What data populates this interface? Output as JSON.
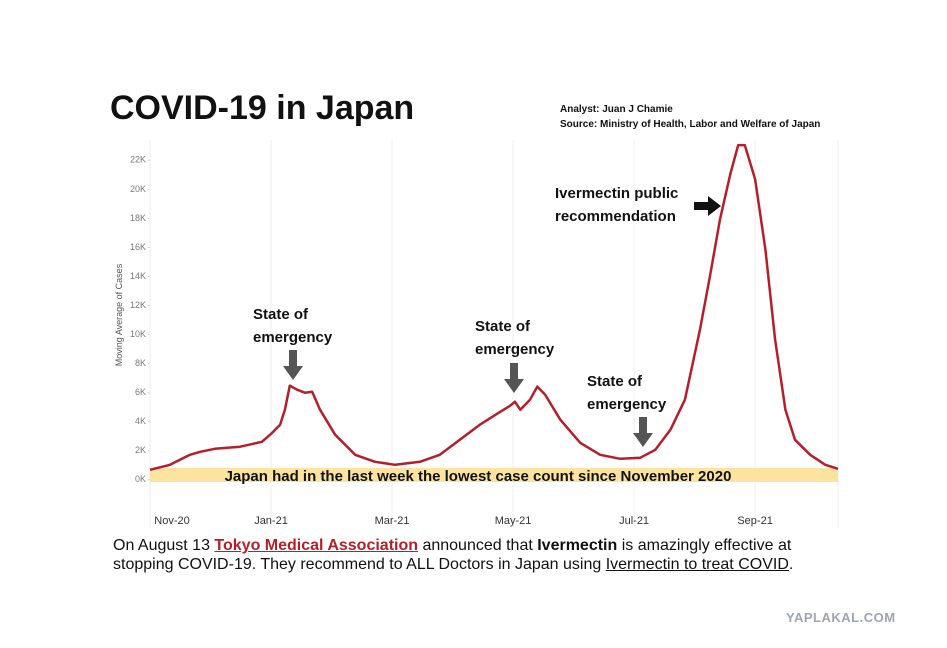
{
  "header": {
    "title": "COVID-19 in Japan",
    "analyst": "Analyst: Juan J Chamie",
    "source": "Source: Ministry of Health, Labor and Welfare of Japan"
  },
  "chart_data": {
    "type": "line",
    "y_label": "Moving Average of Cases",
    "x": [
      0,
      0.33,
      0.66,
      0.83,
      1.07,
      1.49,
      1.85,
      2.02,
      2.15,
      2.23,
      2.31,
      2.43,
      2.56,
      2.68,
      2.81,
      3.06,
      3.39,
      3.72,
      4.05,
      4.46,
      4.79,
      5.12,
      5.45,
      5.79,
      5.95,
      6.03,
      6.12,
      6.28,
      6.4,
      6.53,
      6.78,
      7.11,
      7.44,
      7.77,
      8.1,
      8.35,
      8.6,
      8.84,
      9.09,
      9.26,
      9.42,
      9.59,
      9.72,
      9.83,
      10,
      10.17,
      10.33,
      10.5,
      10.66,
      10.91,
      11.16,
      11.37
    ],
    "series": [
      {
        "color": "#b3202c",
        "values": [
          690,
          1035,
          1725,
          1930,
          2140,
          2280,
          2620,
          3240,
          3800,
          4830,
          6490,
          6210,
          6000,
          6070,
          4830,
          3100,
          1725,
          1240,
          1035,
          1240,
          1725,
          2760,
          3800,
          4690,
          5100,
          5380,
          4830,
          5520,
          6420,
          5870,
          4140,
          2550,
          1725,
          1450,
          1520,
          2070,
          3450,
          5520,
          10350,
          14150,
          17940,
          21050,
          23050,
          23050,
          20700,
          15870,
          9660,
          4830,
          2760,
          1725,
          1035,
          760
        ]
      }
    ],
    "xlim": [
      0,
      11.37
    ],
    "xticks": [
      {
        "value": 0,
        "label": "Nov-20"
      },
      {
        "value": 2,
        "label": "Jan-21"
      },
      {
        "value": 4,
        "label": "Mar-21"
      },
      {
        "value": 6,
        "label": "May-21"
      },
      {
        "value": 8,
        "label": "Jul-21"
      },
      {
        "value": 10,
        "label": "Sep-21"
      }
    ],
    "ylim": [
      -1800,
      23400
    ],
    "yticks": [
      {
        "value": 0,
        "label": "0K"
      },
      {
        "value": 2000,
        "label": "2K"
      },
      {
        "value": 4000,
        "label": "4K"
      },
      {
        "value": 6000,
        "label": "6K"
      },
      {
        "value": 8000,
        "label": "8K"
      },
      {
        "value": 10000,
        "label": "10K"
      },
      {
        "value": 12000,
        "label": "12K"
      },
      {
        "value": 14000,
        "label": "14K"
      },
      {
        "value": 16000,
        "label": "16K"
      },
      {
        "value": 18000,
        "label": "18K"
      },
      {
        "value": 20000,
        "label": "20K"
      },
      {
        "value": 22000,
        "label": "22K"
      }
    ],
    "annotations": [
      [
        "State of",
        "emergency"
      ],
      [
        "State of",
        "emergency"
      ],
      [
        "State of",
        "emergency"
      ],
      [
        "Ivermectin public",
        "recommendation"
      ]
    ],
    "banner": "Japan had in the last week the lowest case count since November 2020"
  },
  "caption": {
    "segments": [
      "On August 13 ",
      "Tokyo Medical Association",
      " announced that ",
      "Ivermectin",
      " is amazingly effective at stopping COVID-19. They recommend to ALL Doctors in Japan using ",
      "Ivermectin to treat COVID",
      "."
    ]
  },
  "watermark": "YAPLAKAL.COM"
}
